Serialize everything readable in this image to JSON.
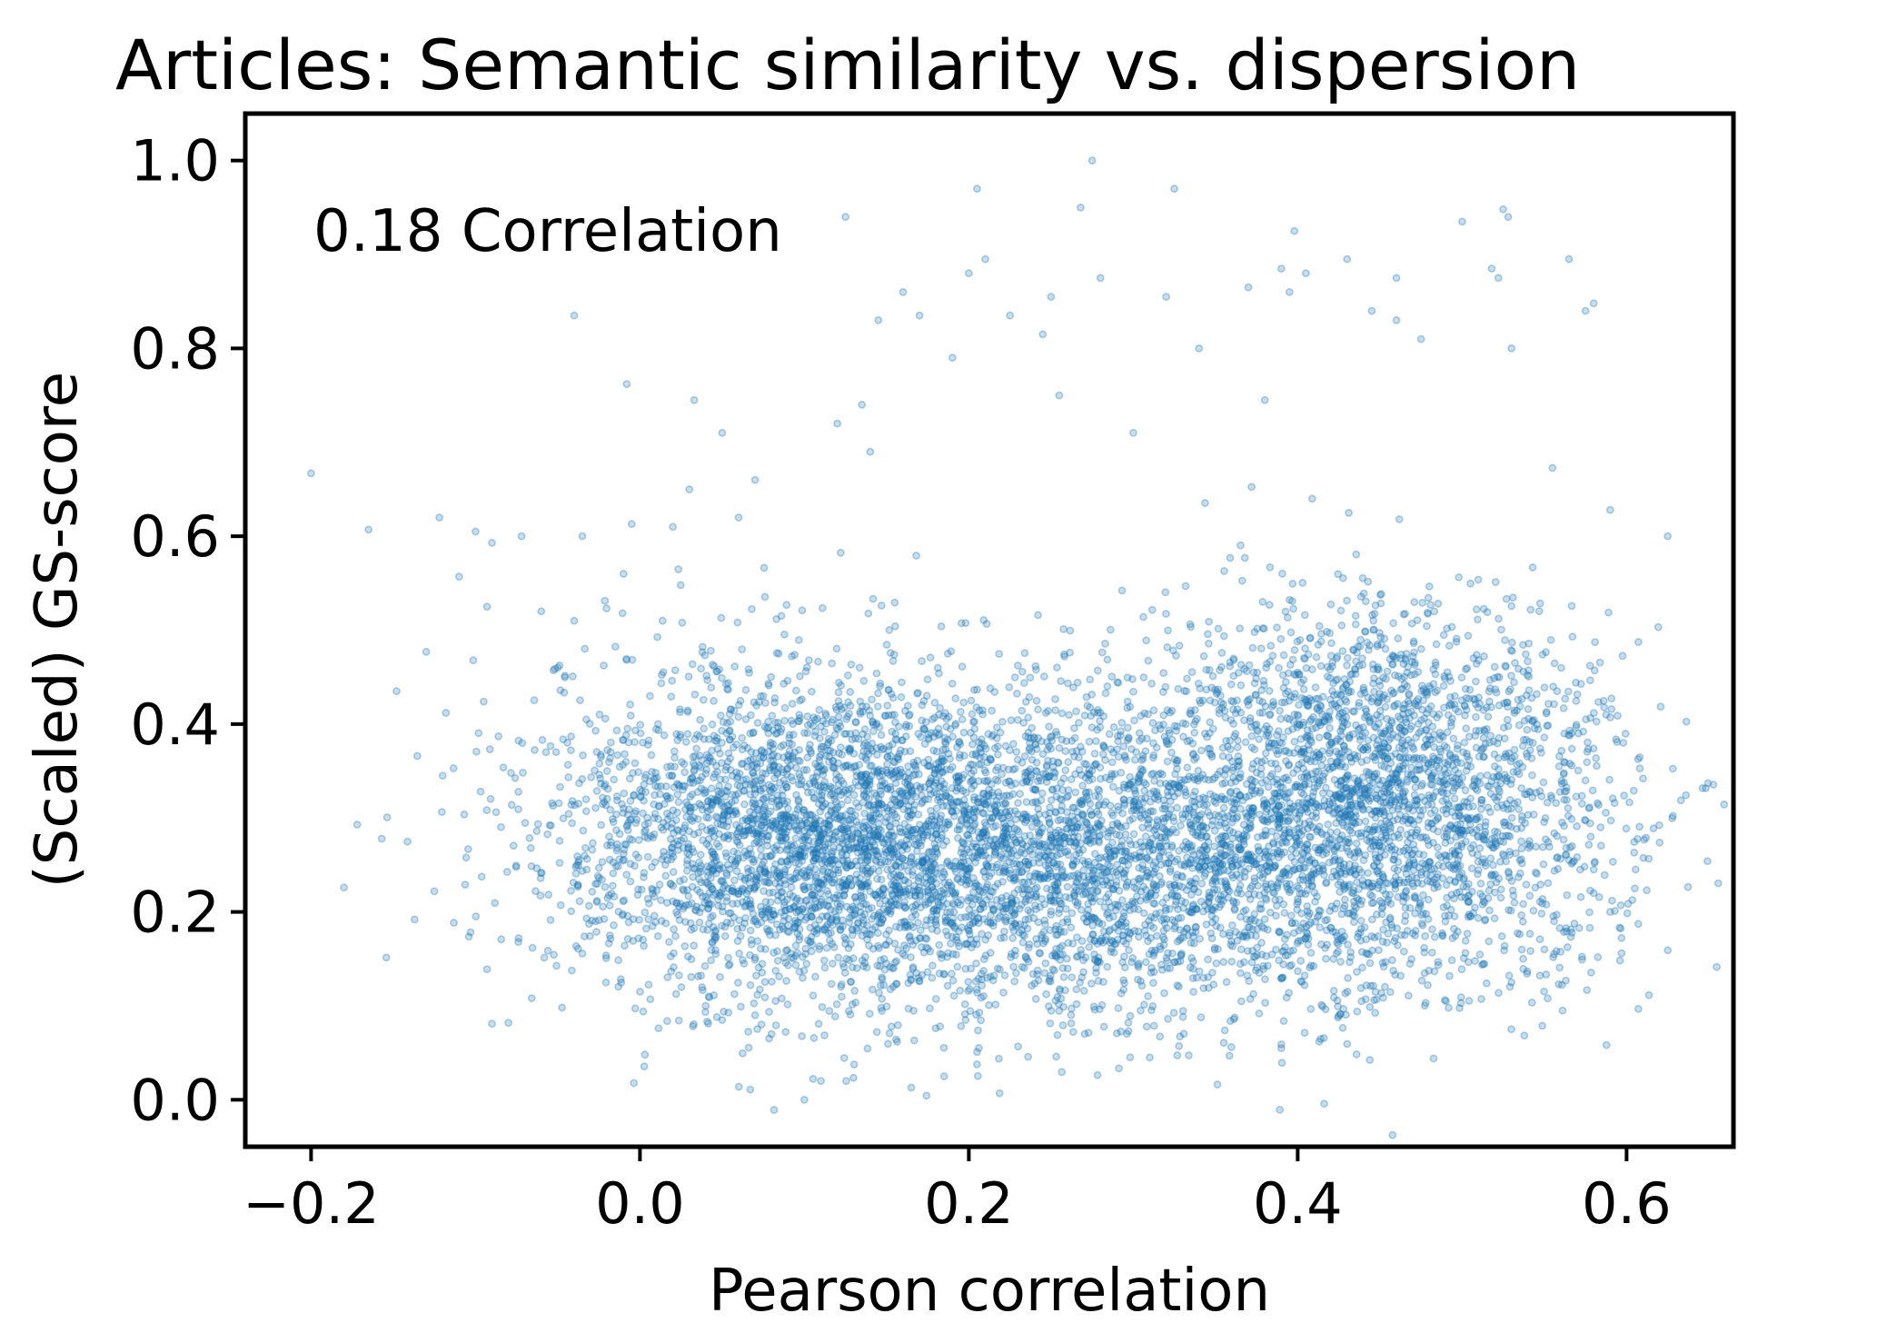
{
  "chart_data": {
    "type": "scatter",
    "title": "Articles: Semantic similarity vs. dispersion",
    "xlabel": "Pearson correlation",
    "ylabel": "(Scaled) GS-score",
    "annotation": "0.18 Correlation",
    "xlim": [
      -0.24,
      0.665
    ],
    "ylim": [
      -0.05,
      1.05
    ],
    "xticks": [
      -0.2,
      0.0,
      0.2,
      0.4,
      0.6
    ],
    "xtick_labels": [
      "−0.2",
      "0.0",
      "0.2",
      "0.4",
      "0.6"
    ],
    "yticks": [
      0.0,
      0.2,
      0.4,
      0.6,
      0.8,
      1.0
    ],
    "ytick_labels": [
      "0.0",
      "0.2",
      "0.4",
      "0.6",
      "0.8",
      "1.0"
    ],
    "grid": false,
    "point_color": "#1f77b4",
    "point_alpha": 0.35,
    "series": [
      {
        "points": [
          [
            -0.2,
            0.667
          ],
          [
            -0.165,
            0.607
          ],
          [
            -0.18,
            0.226
          ],
          [
            -0.172,
            0.293
          ],
          [
            -0.157,
            0.278
          ],
          [
            -0.148,
            0.435
          ],
          [
            -0.13,
            0.477
          ],
          [
            -0.122,
            0.62
          ],
          [
            -0.118,
            0.412
          ],
          [
            -0.11,
            0.557
          ],
          [
            -0.12,
            0.345
          ],
          [
            -0.137,
            0.192
          ],
          [
            -0.125,
            0.222
          ],
          [
            -0.095,
            0.424
          ],
          [
            -0.093,
            0.525
          ],
          [
            -0.09,
            0.593
          ],
          [
            -0.1,
            0.605
          ],
          [
            -0.086,
            0.387
          ],
          [
            -0.078,
            0.314
          ],
          [
            -0.093,
            0.139
          ],
          [
            -0.09,
            0.081
          ],
          [
            -0.08,
            0.082
          ],
          [
            -0.074,
            0.168
          ],
          [
            -0.072,
            0.6
          ],
          [
            -0.06,
            0.52
          ],
          [
            -0.05,
            0.46
          ],
          [
            -0.04,
            0.51
          ],
          [
            -0.035,
            0.6
          ],
          [
            -0.04,
            0.835
          ],
          [
            -0.02,
            0.35
          ],
          [
            -0.01,
            0.56
          ],
          [
            -0.008,
            0.762
          ],
          [
            -0.005,
            0.613
          ],
          [
            0.0,
            0.33
          ],
          [
            0.002,
            0.094
          ],
          [
            0.003,
            0.048
          ],
          [
            0.02,
            0.61
          ],
          [
            0.03,
            0.65
          ],
          [
            0.033,
            0.745
          ],
          [
            0.05,
            0.71
          ],
          [
            0.06,
            0.62
          ],
          [
            0.07,
            0.66
          ],
          [
            0.1,
            0.0
          ],
          [
            0.11,
            0.02
          ],
          [
            0.12,
            0.72
          ],
          [
            0.125,
            0.94
          ],
          [
            0.135,
            0.74
          ],
          [
            0.14,
            0.69
          ],
          [
            0.145,
            0.83
          ],
          [
            0.16,
            0.86
          ],
          [
            0.17,
            0.835
          ],
          [
            0.19,
            0.79
          ],
          [
            0.2,
            0.88
          ],
          [
            0.205,
            0.97
          ],
          [
            0.21,
            0.895
          ],
          [
            0.225,
            0.835
          ],
          [
            0.245,
            0.815
          ],
          [
            0.25,
            0.855
          ],
          [
            0.255,
            0.75
          ],
          [
            0.268,
            0.95
          ],
          [
            0.275,
            1.0
          ],
          [
            0.28,
            0.875
          ],
          [
            0.3,
            0.71
          ],
          [
            0.32,
            0.855
          ],
          [
            0.325,
            0.97
          ],
          [
            0.34,
            0.8
          ],
          [
            0.37,
            0.865
          ],
          [
            0.38,
            0.745
          ],
          [
            0.39,
            0.885
          ],
          [
            0.395,
            0.86
          ],
          [
            0.398,
            0.925
          ],
          [
            0.405,
            0.88
          ],
          [
            0.43,
            0.895
          ],
          [
            0.445,
            0.84
          ],
          [
            0.46,
            0.875
          ],
          [
            0.46,
            0.83
          ],
          [
            0.475,
            0.81
          ],
          [
            0.5,
            0.935
          ],
          [
            0.525,
            0.948
          ],
          [
            0.528,
            0.94
          ],
          [
            0.518,
            0.885
          ],
          [
            0.522,
            0.875
          ],
          [
            0.53,
            0.8
          ],
          [
            0.565,
            0.895
          ],
          [
            0.575,
            0.84
          ],
          [
            0.58,
            0.848
          ],
          [
            0.59,
            0.628
          ],
          [
            0.625,
            0.6
          ],
          [
            0.61,
            0.342
          ],
          [
            0.605,
            0.225
          ],
          [
            0.598,
            0.38
          ],
          [
            0.59,
            0.2
          ],
          [
            0.58,
            0.22
          ],
          [
            0.575,
            0.34
          ],
          [
            0.55,
            0.16
          ],
          [
            0.53,
            0.125
          ],
          [
            0.39,
            0.055
          ],
          [
            0.31,
            0.045
          ],
          [
            0.165,
            0.013
          ],
          [
            0.185,
            0.025
          ],
          [
            0.07,
            0.09
          ],
          [
            0.05,
            0.085
          ],
          [
            0.04,
            0.1
          ],
          [
            0.08,
            0.07
          ]
        ],
        "cloud": {
          "n": 8000,
          "seed": 20240611,
          "clusters": [
            {
              "cx": 0.22,
              "cy": 0.26,
              "sx": 0.11,
              "sy": 0.085,
              "weight": 0.46
            },
            {
              "cx": 0.45,
              "cy": 0.32,
              "sx": 0.07,
              "sy": 0.1,
              "weight": 0.34
            },
            {
              "cx": 0.08,
              "cy": 0.3,
              "sx": 0.07,
              "sy": 0.09,
              "weight": 0.2
            }
          ]
        }
      }
    ]
  }
}
